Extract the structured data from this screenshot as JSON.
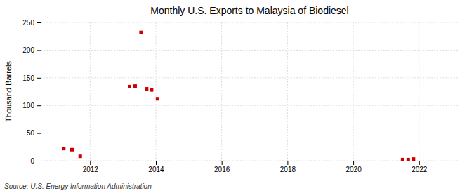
{
  "chart_data": {
    "type": "scatter",
    "title": "Monthly U.S. Exports to Malaysia of Biodiesel",
    "ylabel": "Thousand Barrels",
    "source": "Source: U.S. Energy Information Administration",
    "x": [
      2011.2,
      2011.45,
      2011.7,
      2013.2,
      2013.37,
      2013.55,
      2013.72,
      2013.87,
      2014.05,
      2021.5,
      2021.67,
      2021.83
    ],
    "values": [
      22,
      20,
      8,
      134,
      135,
      232,
      130,
      128,
      112,
      2,
      2,
      3
    ],
    "color": "#cc0000",
    "marker": "square",
    "xlim": [
      2010.5,
      2023.2
    ],
    "ylim": [
      0,
      250
    ],
    "xticks": [
      2012,
      2014,
      2016,
      2018,
      2020,
      2022
    ],
    "yticks": [
      0,
      50,
      100,
      150,
      200,
      250
    ],
    "grid": true
  }
}
